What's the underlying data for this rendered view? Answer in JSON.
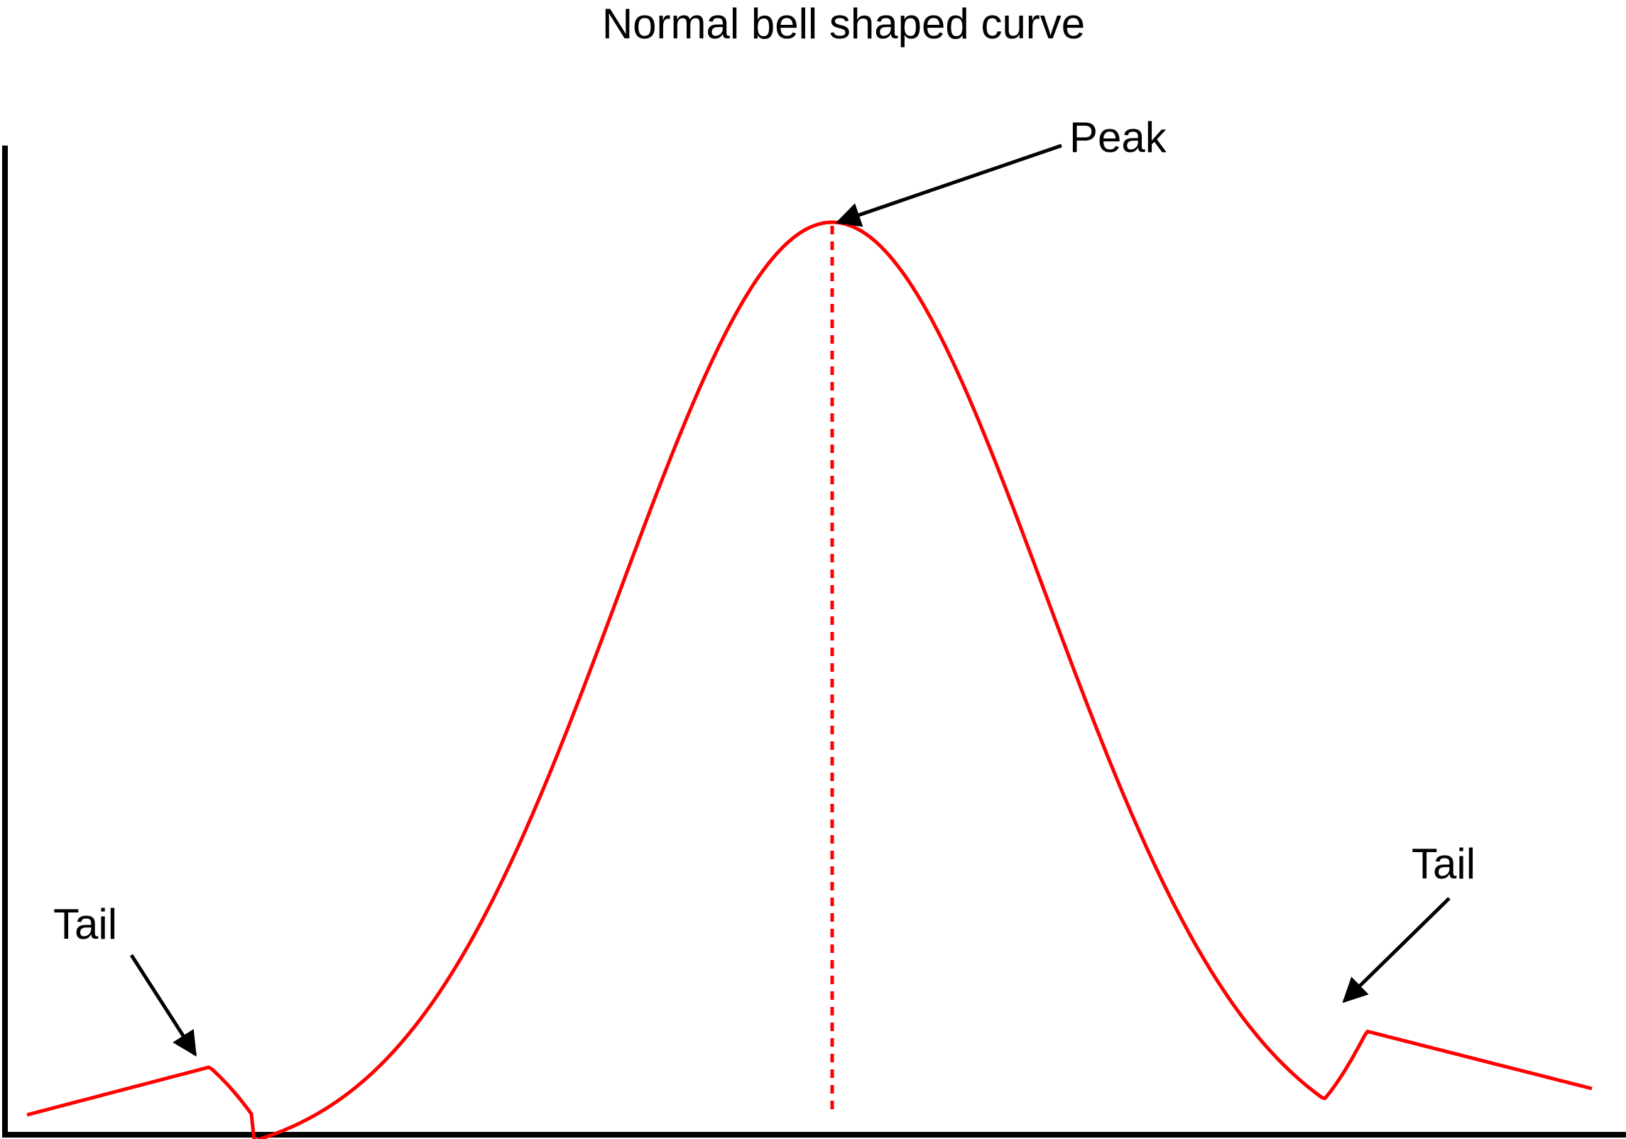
{
  "title": "Normal bell shaped curve",
  "labels": {
    "peak": "Peak",
    "tail_left": "Tail",
    "tail_right": "Tail"
  },
  "colors": {
    "curve": "#ff0000",
    "axes": "#000000",
    "text": "#000000",
    "background": "#ffffff"
  }
}
